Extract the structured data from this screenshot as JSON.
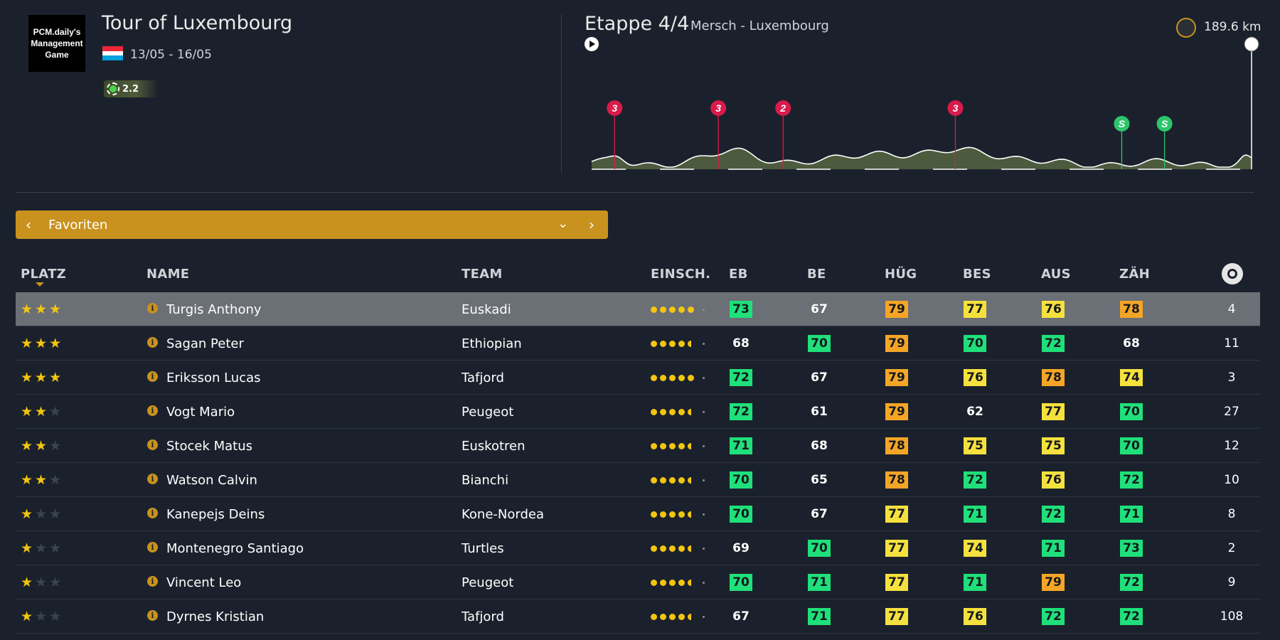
{
  "race": {
    "logo_text": "PCM.daily's Management Game",
    "title": "Tour of Luxembourg",
    "dates": "13/05 - 16/05",
    "category": "2.2"
  },
  "stage": {
    "title": "Etappe 4/4",
    "route": "Mersch - Luxembourg",
    "distance": "189.6 km",
    "climbs": [
      {
        "cat": "3",
        "km": 6.6,
        "color": "#d81b4a"
      },
      {
        "cat": "3",
        "km": 36.4,
        "color": "#d81b4a"
      },
      {
        "cat": "2",
        "km": 55.0,
        "color": "#d81b4a"
      },
      {
        "cat": "3",
        "km": 104.5,
        "color": "#d81b4a"
      },
      {
        "cat": "S",
        "km": 152.3,
        "color": "#2ec56a"
      },
      {
        "cat": "S",
        "km": 164.6,
        "color": "#2ec56a"
      }
    ]
  },
  "filter": {
    "label": "Favoriten"
  },
  "table": {
    "headers": {
      "platz": "PLATZ",
      "name": "NAME",
      "team": "TEAM",
      "form": "EINSCH.",
      "eb": "EB",
      "be": "BE",
      "hug": "HÜG",
      "bes": "BES",
      "aus": "AUS",
      "zah": "ZÄH"
    },
    "rows": [
      {
        "stars": 3,
        "name": "Turgis Anthony",
        "team": "Euskadi",
        "form": 5,
        "eb": "73",
        "be": "67",
        "hug": "79",
        "bes": "77",
        "aus": "76",
        "zah": "78",
        "num": "4",
        "colors": [
          "g",
          "w",
          "o",
          "y",
          "y",
          "o"
        ]
      },
      {
        "stars": 3,
        "name": "Sagan Peter",
        "team": "Ethiopian",
        "form": 4.5,
        "eb": "68",
        "be": "70",
        "hug": "79",
        "bes": "70",
        "aus": "72",
        "zah": "68",
        "num": "11",
        "colors": [
          "w",
          "g",
          "o",
          "g",
          "g",
          "w"
        ]
      },
      {
        "stars": 3,
        "name": "Eriksson Lucas",
        "team": "Tafjord",
        "form": 5,
        "eb": "72",
        "be": "67",
        "hug": "79",
        "bes": "76",
        "aus": "78",
        "zah": "74",
        "num": "3",
        "colors": [
          "g",
          "w",
          "o",
          "y",
          "o",
          "y"
        ]
      },
      {
        "stars": 2,
        "name": "Vogt Mario",
        "team": "Peugeot",
        "form": 4.5,
        "eb": "72",
        "be": "61",
        "hug": "79",
        "bes": "62",
        "aus": "77",
        "zah": "70",
        "num": "27",
        "colors": [
          "g",
          "w",
          "o",
          "w",
          "y",
          "g"
        ]
      },
      {
        "stars": 2,
        "name": "Stocek Matus",
        "team": "Euskotren",
        "form": 4.5,
        "eb": "71",
        "be": "68",
        "hug": "78",
        "bes": "75",
        "aus": "75",
        "zah": "70",
        "num": "12",
        "colors": [
          "g",
          "w",
          "o",
          "y",
          "y",
          "g"
        ]
      },
      {
        "stars": 2,
        "name": "Watson Calvin",
        "team": "Bianchi",
        "form": 4.5,
        "eb": "70",
        "be": "65",
        "hug": "78",
        "bes": "72",
        "aus": "76",
        "zah": "72",
        "num": "10",
        "colors": [
          "g",
          "w",
          "o",
          "g",
          "y",
          "g"
        ]
      },
      {
        "stars": 1,
        "name": "Kanepejs Deins",
        "team": "Kone-Nordea",
        "form": 4.5,
        "eb": "70",
        "be": "67",
        "hug": "77",
        "bes": "71",
        "aus": "72",
        "zah": "71",
        "num": "8",
        "colors": [
          "g",
          "w",
          "y",
          "g",
          "g",
          "g"
        ]
      },
      {
        "stars": 1,
        "name": "Montenegro Santiago",
        "team": "Turtles",
        "form": 4.5,
        "eb": "69",
        "be": "70",
        "hug": "77",
        "bes": "74",
        "aus": "71",
        "zah": "73",
        "num": "2",
        "colors": [
          "w",
          "g",
          "y",
          "y",
          "g",
          "g"
        ]
      },
      {
        "stars": 1,
        "name": "Vincent Leo",
        "team": "Peugeot",
        "form": 4.5,
        "eb": "70",
        "be": "71",
        "hug": "77",
        "bes": "71",
        "aus": "79",
        "zah": "72",
        "num": "9",
        "colors": [
          "g",
          "g",
          "y",
          "g",
          "o",
          "g"
        ]
      },
      {
        "stars": 1,
        "name": "Dyrnes Kristian",
        "team": "Tafjord",
        "form": 4.5,
        "eb": "67",
        "be": "71",
        "hug": "77",
        "bes": "76",
        "aus": "72",
        "zah": "72",
        "num": "108",
        "colors": [
          "w",
          "g",
          "y",
          "y",
          "g",
          "g"
        ]
      }
    ]
  }
}
